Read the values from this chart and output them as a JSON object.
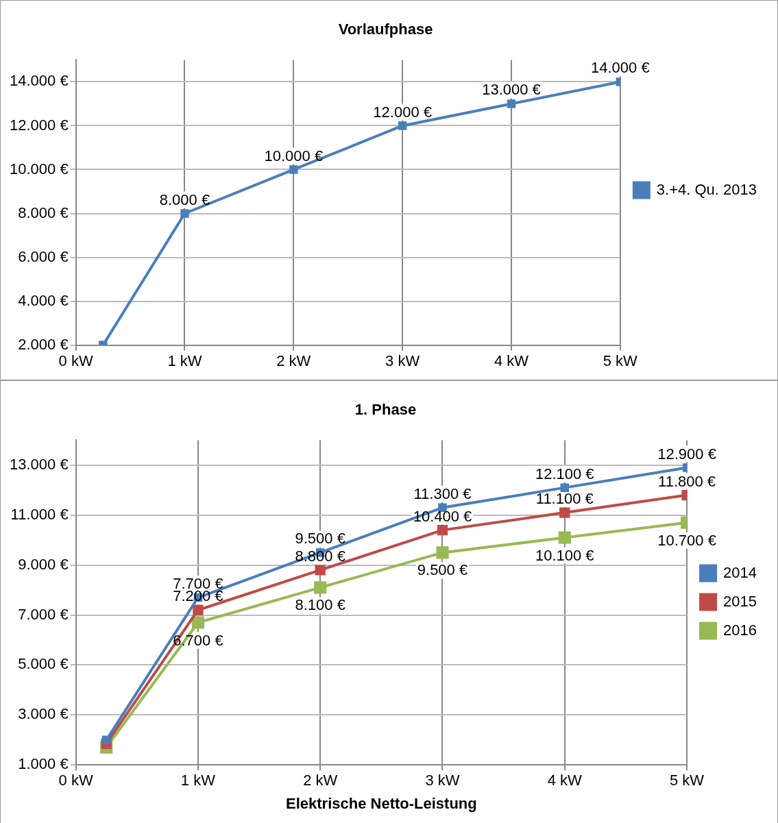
{
  "chart_data": [
    {
      "type": "line",
      "title": "Vorlaufphase",
      "x": [
        0.25,
        1,
        2,
        3,
        4,
        5
      ],
      "xlim": [
        0,
        5
      ],
      "xticks": [
        {
          "value": 0,
          "label": "0 kW"
        },
        {
          "value": 1,
          "label": "1 kW"
        },
        {
          "value": 2,
          "label": "2 kW"
        },
        {
          "value": 3,
          "label": "3 kW"
        },
        {
          "value": 4,
          "label": "4 kW"
        },
        {
          "value": 5,
          "label": "5 kW"
        }
      ],
      "ylim": [
        2000,
        15000
      ],
      "yticks": [
        {
          "value": 2000,
          "label": "2.000 €"
        },
        {
          "value": 4000,
          "label": "4.000 €"
        },
        {
          "value": 6000,
          "label": "6.000 €"
        },
        {
          "value": 8000,
          "label": "8.000 €"
        },
        {
          "value": 10000,
          "label": "10.000 €"
        },
        {
          "value": 12000,
          "label": "12.000 €"
        },
        {
          "value": 14000,
          "label": "14.000 €"
        }
      ],
      "series": [
        {
          "name": "3.+4. Qu. 2013",
          "color": "#4a7ebb",
          "values": [
            2000,
            8000,
            10000,
            12000,
            13000,
            14000
          ],
          "value_labels": [
            null,
            "8.000 €",
            "10.000 €",
            "12.000 €",
            "13.000 €",
            "14.000 €"
          ]
        }
      ],
      "grid": true,
      "legend": "right",
      "marker": "square",
      "line_style": "solid"
    },
    {
      "type": "line",
      "title": "1. Phase",
      "xlabel": "Elektrische Netto-Leistung",
      "x": [
        0.25,
        1,
        2,
        3,
        4,
        5
      ],
      "xlim": [
        0,
        5
      ],
      "xticks": [
        {
          "value": 0,
          "label": "0 kW"
        },
        {
          "value": 1,
          "label": "1 kW"
        },
        {
          "value": 2,
          "label": "2 kW"
        },
        {
          "value": 3,
          "label": "3 kW"
        },
        {
          "value": 4,
          "label": "4 kW"
        },
        {
          "value": 5,
          "label": "5 kW"
        }
      ],
      "ylim": [
        1000,
        14000
      ],
      "yticks": [
        {
          "value": 1000,
          "label": "1.000 €"
        },
        {
          "value": 3000,
          "label": "3.000 €"
        },
        {
          "value": 5000,
          "label": "5.000 €"
        },
        {
          "value": 7000,
          "label": "7.000 €"
        },
        {
          "value": 9000,
          "label": "9.000 €"
        },
        {
          "value": 11000,
          "label": "11.000 €"
        },
        {
          "value": 13000,
          "label": "13.000 €"
        }
      ],
      "series": [
        {
          "name": "2014",
          "color": "#4a7ebb",
          "values": [
            2000,
            7700,
            9500,
            11300,
            12100,
            12900
          ],
          "value_labels": [
            null,
            "7.700 €",
            "9.500 €",
            "11.300 €",
            "12.100 €",
            "12.900 €"
          ]
        },
        {
          "name": "2015",
          "color": "#be4b48",
          "values": [
            1850,
            7200,
            8800,
            10400,
            11100,
            11800
          ],
          "value_labels": [
            null,
            "7.200 €",
            "8.800 €",
            "10.400 €",
            "11.100 €",
            "11.800 €"
          ]
        },
        {
          "name": "2016",
          "color": "#98b954",
          "values": [
            1700,
            6700,
            8100,
            9500,
            10100,
            10700
          ],
          "value_labels": [
            null,
            "6.700 €",
            "8.100 €",
            "9.500 €",
            "10.100 €",
            "10.700 €"
          ]
        }
      ],
      "grid": true,
      "legend": "right",
      "marker": "square",
      "line_style": "solid"
    }
  ]
}
